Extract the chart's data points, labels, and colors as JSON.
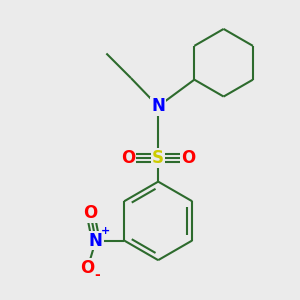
{
  "bg_color": "#ebebeb",
  "bond_color": "#2d6b2d",
  "N_color": "#0000ff",
  "S_color": "#cccc00",
  "O_color": "#ff0000",
  "nitro_N_color": "#0000ff",
  "lw": 1.5,
  "fig_width": 3.0,
  "fig_height": 3.0,
  "dpi": 100,
  "xlim": [
    -2.5,
    2.5
  ],
  "ylim": [
    -3.2,
    2.2
  ]
}
